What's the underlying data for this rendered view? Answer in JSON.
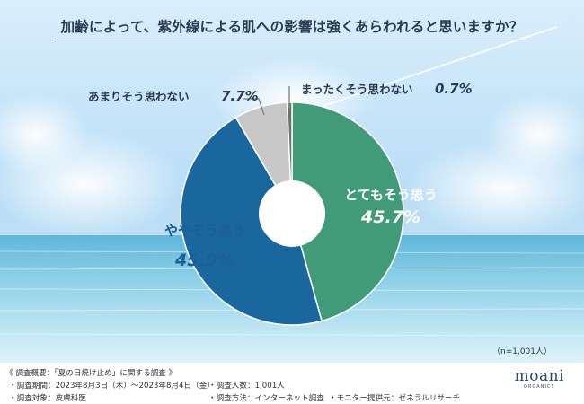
{
  "title": "加齢によって、紫外線による肌への影響は強くあらわれると思いますか？",
  "sample_size": "（n=1,001人）",
  "colors": {
    "strongly_agree": "#419b78",
    "somewhat_agree": "#1a67a0",
    "not_really": "#c7c7c7",
    "not_at_all": "#6f6f6f",
    "text_dark": "#2b3a52"
  },
  "chart_data": {
    "type": "pie",
    "title": "加齢によって、紫外線による肌への影響は強くあらわれると思いますか？",
    "donut": true,
    "start": "top",
    "direction": "clockwise",
    "slices": [
      {
        "label": "とてもそう思う",
        "value": 45.7,
        "display": "45.7%",
        "color": "#419b78"
      },
      {
        "label": "ややそう思う",
        "value": 45.9,
        "display": "45.9%",
        "color": "#1a67a0"
      },
      {
        "label": "あまりそう思わない",
        "value": 7.7,
        "display": "7.7%",
        "color": "#c7c7c7"
      },
      {
        "label": "まったくそう思わない",
        "value": 0.7,
        "display": "0.7%",
        "color": "#6f6f6f"
      }
    ]
  },
  "footer": {
    "heading": "《 調査概要：「夏の日焼け止め」に関する調査 》",
    "period": "・調査期間：2023年8月3日（木）～2023年8月4日（金）",
    "target": "・調査対象：皮膚科医",
    "count": "・調査人数：1,001人",
    "method": "・調査方法：インターネット調査",
    "monitor": "・モニター提供元：ゼネラルリサーチ"
  },
  "brand": {
    "name": "moani",
    "sub": "ORGANICS"
  }
}
